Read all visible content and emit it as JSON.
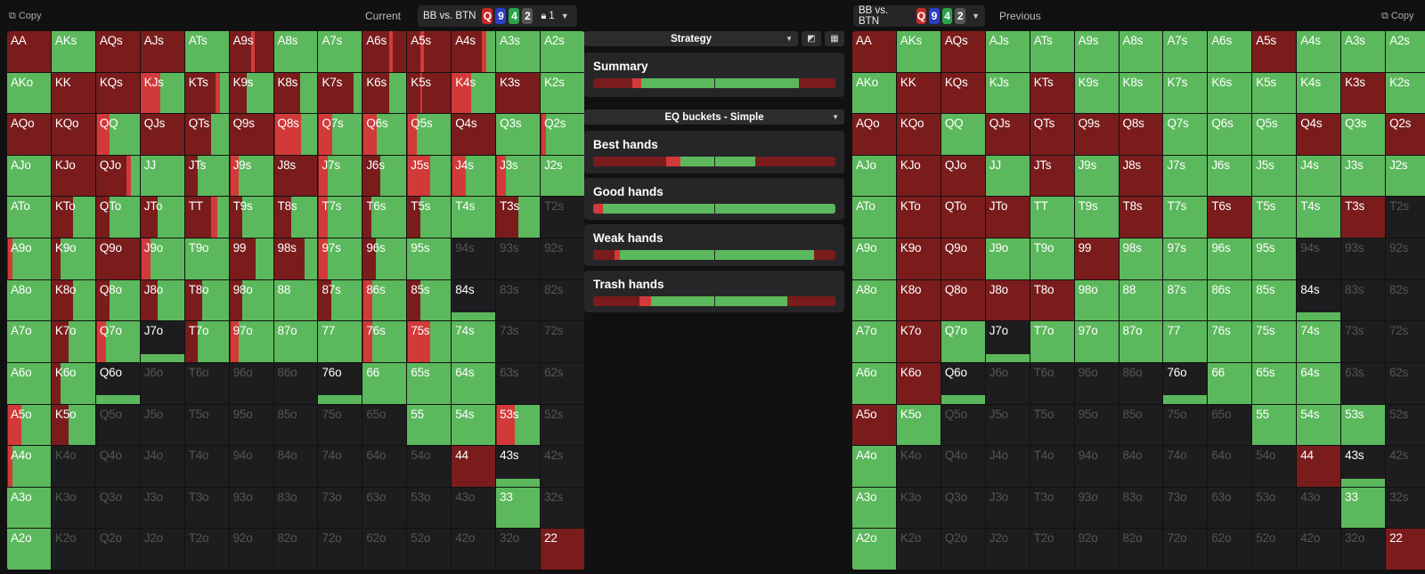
{
  "left": {
    "copy_label": "Copy",
    "mode_label": "Current",
    "spot_label": "BB vs. BTN",
    "board": [
      {
        "rank": "Q",
        "color": "#c42a2a"
      },
      {
        "rank": "9",
        "color": "#2a3fc4"
      },
      {
        "rank": "4",
        "color": "#2aa34a"
      },
      {
        "rank": "2",
        "color": "#555555"
      }
    ],
    "lock_label": "1"
  },
  "right": {
    "copy_label": "Copy",
    "mode_label": "Previous",
    "spot_label": "BB vs. BTN",
    "board": [
      {
        "rank": "Q",
        "color": "#c42a2a"
      },
      {
        "rank": "9",
        "color": "#2a3fc4"
      },
      {
        "rank": "4",
        "color": "#2aa34a"
      },
      {
        "rank": "2",
        "color": "#555555"
      }
    ]
  },
  "colors": {
    "call": "#5cb85c",
    "raise_small": "#d23a3a",
    "raise_big": "#7a1c1c",
    "empty": "#1d1d1f"
  },
  "middle": {
    "strategy_label": "Strategy",
    "eq_label": "EQ buckets - Simple",
    "panels": [
      {
        "title": "Summary",
        "segs": [
          {
            "c": "big",
            "w": 0.16
          },
          {
            "c": "small",
            "w": 0.04
          },
          {
            "c": "call",
            "w": 0.65
          },
          {
            "c": "big",
            "w": 0.15
          }
        ]
      },
      {
        "title": "Best hands",
        "segs": [
          {
            "c": "big",
            "w": 0.3
          },
          {
            "c": "small",
            "w": 0.06
          },
          {
            "c": "call",
            "w": 0.31
          },
          {
            "c": "big",
            "w": 0.33
          }
        ]
      },
      {
        "title": "Good hands",
        "segs": [
          {
            "c": "small",
            "w": 0.04
          },
          {
            "c": "call",
            "w": 0.96
          }
        ]
      },
      {
        "title": "Weak hands",
        "segs": [
          {
            "c": "big",
            "w": 0.09
          },
          {
            "c": "small",
            "w": 0.02
          },
          {
            "c": "call",
            "w": 0.8
          },
          {
            "c": "big",
            "w": 0.09
          }
        ]
      },
      {
        "title": "Trash hands",
        "segs": [
          {
            "c": "big",
            "w": 0.19
          },
          {
            "c": "small",
            "w": 0.05
          },
          {
            "c": "call",
            "w": 0.56
          },
          {
            "c": "big",
            "w": 0.2
          }
        ]
      }
    ]
  },
  "hands": [
    [
      "AA",
      "AKs",
      "AQs",
      "AJs",
      "ATs",
      "A9s",
      "A8s",
      "A7s",
      "A6s",
      "A5s",
      "A4s",
      "A3s",
      "A2s"
    ],
    [
      "AKo",
      "KK",
      "KQs",
      "KJs",
      "KTs",
      "K9s",
      "K8s",
      "K7s",
      "K6s",
      "K5s",
      "K4s",
      "K3s",
      "K2s"
    ],
    [
      "AQo",
      "KQo",
      "QQ",
      "QJs",
      "QTs",
      "Q9s",
      "Q8s",
      "Q7s",
      "Q6s",
      "Q5s",
      "Q4s",
      "Q3s",
      "Q2s"
    ],
    [
      "AJo",
      "KJo",
      "QJo",
      "JJ",
      "JTs",
      "J9s",
      "J8s",
      "J7s",
      "J6s",
      "J5s",
      "J4s",
      "J3s",
      "J2s"
    ],
    [
      "ATo",
      "KTo",
      "QTo",
      "JTo",
      "TT",
      "T9s",
      "T8s",
      "T7s",
      "T6s",
      "T5s",
      "T4s",
      "T3s",
      "T2s"
    ],
    [
      "A9o",
      "K9o",
      "Q9o",
      "J9o",
      "T9o",
      "99",
      "98s",
      "97s",
      "96s",
      "95s",
      "94s",
      "93s",
      "92s"
    ],
    [
      "A8o",
      "K8o",
      "Q8o",
      "J8o",
      "T8o",
      "98o",
      "88",
      "87s",
      "86s",
      "85s",
      "84s",
      "83s",
      "82s"
    ],
    [
      "A7o",
      "K7o",
      "Q7o",
      "J7o",
      "T7o",
      "97o",
      "87o",
      "77",
      "76s",
      "75s",
      "74s",
      "73s",
      "72s"
    ],
    [
      "A6o",
      "K6o",
      "Q6o",
      "J6o",
      "T6o",
      "96o",
      "86o",
      "76o",
      "66",
      "65s",
      "64s",
      "63s",
      "62s"
    ],
    [
      "A5o",
      "K5o",
      "Q5o",
      "J5o",
      "T5o",
      "95o",
      "85o",
      "75o",
      "65o",
      "55",
      "54s",
      "53s",
      "52s"
    ],
    [
      "A4o",
      "K4o",
      "Q4o",
      "J4o",
      "T4o",
      "94o",
      "84o",
      "74o",
      "64o",
      "54o",
      "44",
      "43s",
      "42s"
    ],
    [
      "A3o",
      "K3o",
      "Q3o",
      "J3o",
      "T3o",
      "93o",
      "83o",
      "73o",
      "63o",
      "53o",
      "43o",
      "33",
      "32s"
    ],
    [
      "A2o",
      "K2o",
      "Q2o",
      "J2o",
      "T2o",
      "92o",
      "82o",
      "72o",
      "62o",
      "52o",
      "42o",
      "32o",
      "22"
    ]
  ],
  "left_strategy": [
    [
      "B",
      "C",
      "B",
      "B",
      "C",
      "b5B4",
      "C",
      "C",
      "b6B5",
      "b3B2",
      "B2C",
      "C",
      "C"
    ],
    [
      "C",
      "B",
      "B",
      "B9C",
      "B2C",
      "b4C",
      "b6C",
      "b8C",
      "b6C",
      "b3B",
      "B9C",
      "B",
      "C"
    ],
    [
      "B",
      "B",
      "s3C",
      "B",
      "b6C",
      "B",
      "s6C",
      "s3C",
      "s3C",
      "s2C",
      "B",
      "C",
      "s1C"
    ],
    [
      "C",
      "B",
      "B2C",
      "C",
      "b3C",
      "s2C",
      "B",
      "s2C",
      "b4C",
      "s5C",
      "s3C",
      "s2C",
      "C"
    ],
    [
      "C",
      "b5C",
      "b3C",
      "b4C",
      "B3C",
      "b3C",
      "b4C",
      "s2C",
      "b2C",
      "b3C",
      "C",
      "b5C",
      "E"
    ],
    [
      "s1C",
      "b2C",
      "B",
      "s2C",
      "C",
      "b6C",
      "b7C",
      "s2C",
      "b3C",
      "C",
      "E",
      "E",
      "E"
    ],
    [
      "C",
      "b5C",
      "b3C",
      "b4C",
      "b4C",
      "b3C",
      "C",
      "b3C",
      "s2C",
      "b3C",
      "D",
      "E",
      "E"
    ],
    [
      "C",
      "b4C",
      "s2C",
      "D",
      "b3C",
      "s2C",
      "C",
      "C",
      "s2C",
      "s5C",
      "C",
      "E",
      "E"
    ],
    [
      "C",
      "b2C",
      "D",
      "E",
      "E",
      "E",
      "E",
      "D",
      "C",
      "C",
      "C",
      "E",
      "E"
    ],
    [
      "s3C",
      "b4C",
      "E",
      "E",
      "E",
      "E",
      "E",
      "E",
      "E",
      "C",
      "C",
      "s4C",
      "E"
    ],
    [
      "s1C",
      "E",
      "E",
      "E",
      "E",
      "E",
      "E",
      "E",
      "E",
      "E",
      "B",
      "D",
      "E"
    ],
    [
      "C",
      "E",
      "E",
      "E",
      "E",
      "E",
      "E",
      "E",
      "E",
      "E",
      "E",
      "C",
      "E"
    ],
    [
      "C",
      "E",
      "E",
      "E",
      "E",
      "E",
      "E",
      "E",
      "E",
      "E",
      "E",
      "E",
      "B"
    ]
  ],
  "right_strategy": [
    [
      "B",
      "C",
      "B",
      "C",
      "C",
      "C",
      "C",
      "C",
      "C",
      "B",
      "C",
      "C",
      "C"
    ],
    [
      "C",
      "B",
      "B",
      "C",
      "B",
      "C",
      "C",
      "C",
      "C",
      "C",
      "C",
      "B",
      "C"
    ],
    [
      "B",
      "B",
      "C",
      "B",
      "B",
      "B",
      "B",
      "C",
      "C",
      "C",
      "B",
      "C",
      "B"
    ],
    [
      "C",
      "B",
      "B",
      "C",
      "B",
      "C",
      "B",
      "C",
      "C",
      "C",
      "C",
      "C",
      "C"
    ],
    [
      "C",
      "B",
      "B",
      "B",
      "C",
      "C",
      "B",
      "C",
      "B",
      "C",
      "C",
      "B",
      "E"
    ],
    [
      "C",
      "B",
      "B",
      "C",
      "C",
      "B",
      "C",
      "C",
      "C",
      "C",
      "E",
      "E",
      "E"
    ],
    [
      "C",
      "B",
      "B",
      "B",
      "B",
      "C",
      "C",
      "C",
      "C",
      "C",
      "D",
      "E",
      "E"
    ],
    [
      "C",
      "B",
      "C",
      "D",
      "C",
      "C",
      "C",
      "C",
      "C",
      "C",
      "C",
      "E",
      "E"
    ],
    [
      "C",
      "B",
      "D",
      "E",
      "E",
      "E",
      "E",
      "D",
      "C",
      "C",
      "C",
      "E",
      "E"
    ],
    [
      "B",
      "C",
      "E",
      "E",
      "E",
      "E",
      "E",
      "E",
      "E",
      "C",
      "C",
      "C",
      "E"
    ],
    [
      "C",
      "E",
      "E",
      "E",
      "E",
      "E",
      "E",
      "E",
      "E",
      "E",
      "B",
      "D",
      "E"
    ],
    [
      "C",
      "E",
      "E",
      "E",
      "E",
      "E",
      "E",
      "E",
      "E",
      "E",
      "E",
      "C",
      "E"
    ],
    [
      "C",
      "E",
      "E",
      "E",
      "E",
      "E",
      "E",
      "E",
      "E",
      "E",
      "E",
      "E",
      "B"
    ]
  ]
}
